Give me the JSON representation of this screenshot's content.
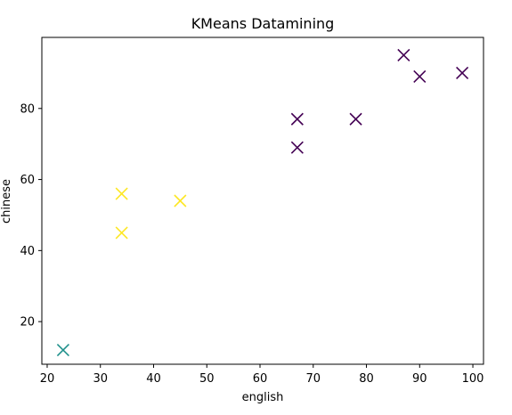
{
  "chart_data": {
    "type": "scatter",
    "title": "KMeans Datamining",
    "xlabel": "english",
    "ylabel": "chinese",
    "xlim": [
      19,
      102
    ],
    "ylim": [
      8,
      100
    ],
    "xticks": [
      20,
      30,
      40,
      50,
      60,
      70,
      80,
      90,
      100
    ],
    "yticks": [
      20,
      40,
      60,
      80
    ],
    "grid": false,
    "marker": "x",
    "cluster_colors": [
      "#440154",
      "#21918c",
      "#fde725"
    ],
    "points": [
      {
        "x": 87,
        "y": 95,
        "cluster": 0
      },
      {
        "x": 90,
        "y": 89,
        "cluster": 0
      },
      {
        "x": 98,
        "y": 90,
        "cluster": 0
      },
      {
        "x": 67,
        "y": 77,
        "cluster": 0
      },
      {
        "x": 78,
        "y": 77,
        "cluster": 0
      },
      {
        "x": 67,
        "y": 69,
        "cluster": 0
      },
      {
        "x": 34,
        "y": 56,
        "cluster": 2
      },
      {
        "x": 45,
        "y": 54,
        "cluster": 2
      },
      {
        "x": 34,
        "y": 45,
        "cluster": 2
      },
      {
        "x": 23,
        "y": 12,
        "cluster": 1
      }
    ]
  }
}
